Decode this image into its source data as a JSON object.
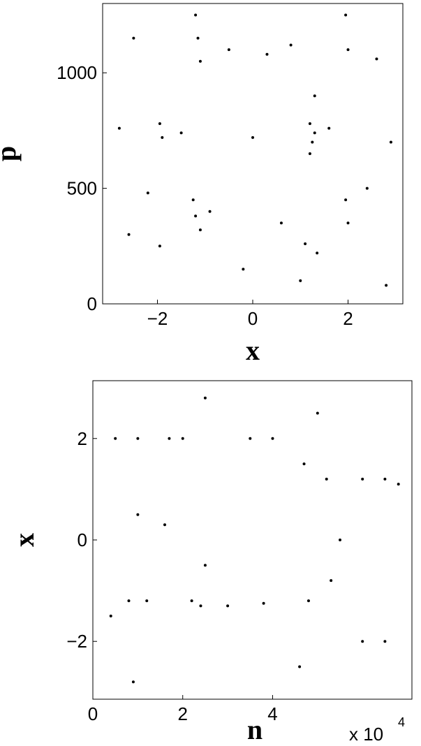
{
  "chart_data": [
    {
      "type": "scatter",
      "x_label": "x",
      "y_label": "p",
      "color": "#000000",
      "series": [
        {
          "x": [
            -1.2,
            -1.15,
            -1.1,
            -1.25,
            -1.2,
            -1.1,
            -1.95,
            -1.9,
            -1.95,
            1.2,
            1.3,
            1.25,
            1.1,
            1.35,
            1.2,
            1.3,
            1.95,
            2.0,
            1.95,
            2.0,
            -2.5,
            -0.5,
            0.3,
            0.8,
            2.6,
            -2.8,
            -1.5,
            0.0,
            1.6,
            2.9,
            -2.2,
            -0.9,
            0.6,
            2.4,
            -2.6,
            -0.2,
            1.0,
            2.8
          ],
          "values": [
            1250,
            1150,
            1050,
            450,
            380,
            320,
            780,
            720,
            250,
            780,
            740,
            700,
            260,
            220,
            650,
            900,
            1250,
            1100,
            450,
            350,
            1150,
            1100,
            1080,
            1120,
            1060,
            760,
            740,
            720,
            760,
            700,
            480,
            400,
            350,
            500,
            300,
            150,
            100,
            80
          ]
        }
      ],
      "xlim": [
        -3.15,
        3.15
      ],
      "ylim": [
        0,
        1300
      ],
      "xticks": [
        {
          "value": -2,
          "label": "−2"
        },
        0,
        2
      ],
      "yticks": [
        0,
        500,
        1000
      ]
    },
    {
      "type": "scatter",
      "x_label": "n",
      "y_label": "x",
      "x_multiplier": "x 10",
      "x_multiplier_exp": "4",
      "color": "#000000",
      "series": [
        {
          "x": [
            0.5,
            1.0,
            1.7,
            2.0,
            3.5,
            4.0,
            3.0,
            0.8,
            1.2,
            2.4,
            4.8,
            5.2,
            6.0,
            6.5,
            6.8,
            5.0,
            4.6,
            2.5,
            1.0,
            6.5,
            6.0,
            0.4,
            2.2,
            3.8,
            5.5,
            0.9,
            1.6,
            2.5,
            4.7,
            5.3
          ],
          "values": [
            2.0,
            2.0,
            2.0,
            2.0,
            2.0,
            2.0,
            -1.3,
            -1.2,
            -1.2,
            -1.3,
            -1.2,
            1.2,
            1.2,
            1.2,
            1.1,
            2.5,
            -2.5,
            2.8,
            0.5,
            -2.0,
            -2.0,
            -1.5,
            -1.2,
            -1.25,
            0.0,
            -2.8,
            0.3,
            -0.5,
            1.5,
            -0.8
          ]
        }
      ],
      "xlim": [
        0,
        7.1
      ],
      "ylim": [
        -3.14,
        3.14
      ],
      "xticks": [
        0,
        2,
        4
      ],
      "yticks": [
        {
          "value": -2,
          "label": "−2"
        },
        0,
        2
      ]
    }
  ]
}
